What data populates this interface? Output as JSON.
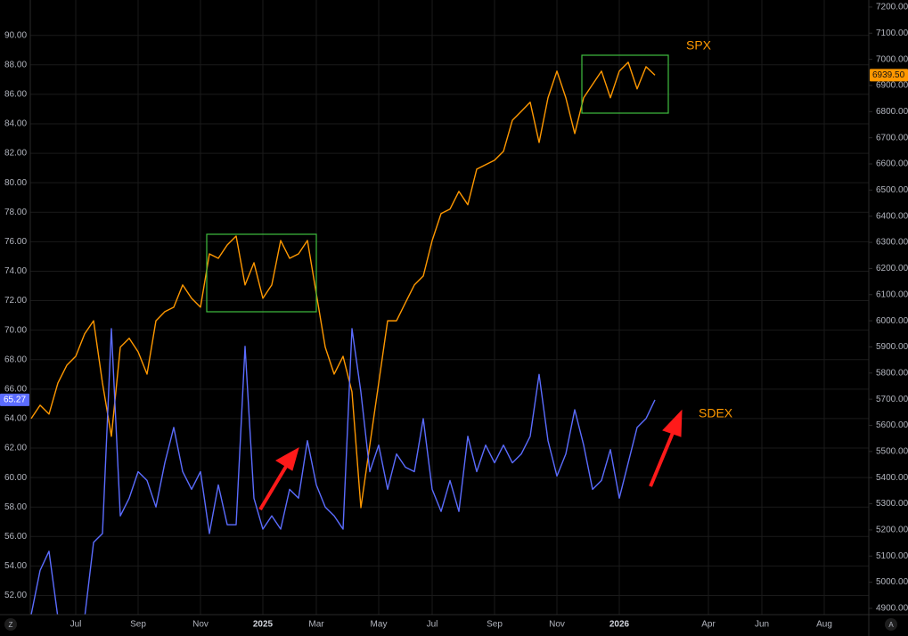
{
  "chart_data": {
    "type": "line",
    "grid": true,
    "annotations": [
      "SPX",
      "SDEX"
    ],
    "controls": {
      "left": "Z",
      "right": "A"
    },
    "categories": [
      null,
      null,
      null,
      null,
      null,
      "Jul",
      null,
      null,
      null,
      null,
      null,
      null,
      "Sep",
      null,
      null,
      null,
      null,
      null,
      null,
      "Nov",
      null,
      null,
      null,
      null,
      null,
      null,
      "2025",
      null,
      null,
      null,
      null,
      null,
      "Mar",
      null,
      null,
      null,
      null,
      null,
      null,
      "May",
      null,
      null,
      null,
      null,
      null,
      "Jul",
      null,
      null,
      null,
      null,
      null,
      null,
      "Sep",
      null,
      null,
      null,
      null,
      null,
      null,
      "Nov",
      null,
      null,
      null,
      null,
      null,
      null,
      "2026",
      null,
      null,
      null,
      null,
      null,
      null,
      null,
      null,
      null,
      "Apr",
      null,
      null,
      null,
      null,
      null,
      "Jun",
      null,
      null,
      null,
      null,
      null,
      null,
      "Aug",
      null,
      null,
      null,
      null
    ],
    "ylim": [
      50.7,
      92.4
    ],
    "yticks": [
      {
        "value": 52,
        "label": "52.00"
      },
      {
        "value": 54,
        "label": "54.00"
      },
      {
        "value": 56,
        "label": "56.00"
      },
      {
        "value": 58,
        "label": "58.00"
      },
      {
        "value": 60,
        "label": "60.00"
      },
      {
        "value": 62,
        "label": "62.00"
      },
      {
        "value": 64,
        "label": "64.00"
      },
      {
        "value": 66,
        "label": "66.00"
      },
      {
        "value": 68,
        "label": "68.00"
      },
      {
        "value": 70,
        "label": "70.00"
      },
      {
        "value": 72,
        "label": "72.00"
      },
      {
        "value": 74,
        "label": "74.00"
      },
      {
        "value": 76,
        "label": "76.00"
      },
      {
        "value": 78,
        "label": "78.00"
      },
      {
        "value": 80,
        "label": "80.00"
      },
      {
        "value": 82,
        "label": "82.00"
      },
      {
        "value": 84,
        "label": "84.00"
      },
      {
        "value": 86,
        "label": "86.00"
      },
      {
        "value": 88,
        "label": "88.00"
      },
      {
        "value": 90,
        "label": "90.00"
      }
    ],
    "y2lim": [
      4876,
      7227
    ],
    "y2ticks": [
      {
        "value": 4900,
        "label": "4900.00"
      },
      {
        "value": 5000,
        "label": "5000.00"
      },
      {
        "value": 5100,
        "label": "5100.00"
      },
      {
        "value": 5200,
        "label": "5200.00"
      },
      {
        "value": 5300,
        "label": "5300.00"
      },
      {
        "value": 5400,
        "label": "5400.00"
      },
      {
        "value": 5500,
        "label": "5500.00"
      },
      {
        "value": 5600,
        "label": "5600.00"
      },
      {
        "value": 5700,
        "label": "5700.00"
      },
      {
        "value": 5800,
        "label": "5800.00"
      },
      {
        "value": 5900,
        "label": "5900.00"
      },
      {
        "value": 6000,
        "label": "6000.00"
      },
      {
        "value": 6100,
        "label": "6100.00"
      },
      {
        "value": 6200,
        "label": "6200.00"
      },
      {
        "value": 6300,
        "label": "6300.00"
      },
      {
        "value": 6400,
        "label": "6400.00"
      },
      {
        "value": 6500,
        "label": "6500.00"
      },
      {
        "value": 6600,
        "label": "6600.00"
      },
      {
        "value": 6700,
        "label": "6700.00"
      },
      {
        "value": 6800,
        "label": "6800.00"
      },
      {
        "value": 6900,
        "label": "6900.00"
      },
      {
        "value": 7000,
        "label": "7000.00"
      },
      {
        "value": 7100,
        "label": "7100.00"
      },
      {
        "value": 7200,
        "label": "7200.00"
      }
    ],
    "series": [
      {
        "name": "SPX",
        "axis": "y2",
        "color": "#ff9800",
        "price_label": "6939.50",
        "values": [
          5626,
          5677,
          5643,
          5762,
          5830,
          5864,
          5950,
          6000,
          5762,
          5558,
          5899,
          5933,
          5881,
          5796,
          6000,
          6035,
          6052,
          6137,
          6086,
          6052,
          6256,
          6239,
          6290,
          6324,
          6137,
          6222,
          6086,
          6137,
          6307,
          6239,
          6256,
          6307,
          6103,
          5899,
          5796,
          5864,
          5728,
          5285,
          5524,
          5762,
          6000,
          6000,
          6069,
          6137,
          6171,
          6307,
          6410,
          6427,
          6495,
          6444,
          6580,
          6597,
          6614,
          6648,
          6767,
          6801,
          6836,
          6682,
          6853,
          6955,
          6853,
          6716,
          6853,
          6904,
          6955,
          6853,
          6955,
          6989,
          6887,
          6972,
          6939.5,
          null,
          null,
          null,
          null,
          null,
          null,
          null,
          null,
          null,
          null,
          null,
          null,
          null,
          null,
          null,
          null,
          null,
          null,
          null,
          null,
          null,
          null,
          null
        ]
      },
      {
        "name": "SDEX",
        "color": "#5b6cff",
        "values": [
          50.7,
          53.7,
          55.0,
          50.5,
          50.5,
          50.5,
          50.5,
          55.6,
          56.2,
          70.1,
          57.4,
          58.6,
          60.4,
          59.8,
          58.0,
          61.0,
          63.4,
          60.4,
          59.2,
          60.4,
          56.2,
          59.5,
          56.8,
          56.8,
          68.9,
          58.6,
          56.5,
          57.4,
          56.5,
          59.2,
          58.6,
          62.5,
          59.5,
          58.0,
          57.4,
          56.5,
          70.1,
          65.8,
          60.4,
          62.2,
          59.2,
          61.6,
          60.7,
          60.4,
          64.0,
          59.2,
          57.7,
          59.8,
          57.7,
          62.8,
          60.4,
          62.2,
          61.0,
          62.2,
          61.0,
          61.6,
          62.8,
          67.0,
          62.5,
          60.1,
          61.6,
          64.6,
          62.2,
          59.2,
          59.8,
          61.9,
          58.6,
          61.0,
          63.4,
          64.0,
          65.27,
          null,
          null,
          null,
          null,
          null,
          null,
          null,
          null,
          null,
          null,
          null,
          null,
          null,
          null,
          null,
          null,
          null,
          null,
          null,
          null,
          null,
          null,
          null
        ]
      }
    ]
  }
}
